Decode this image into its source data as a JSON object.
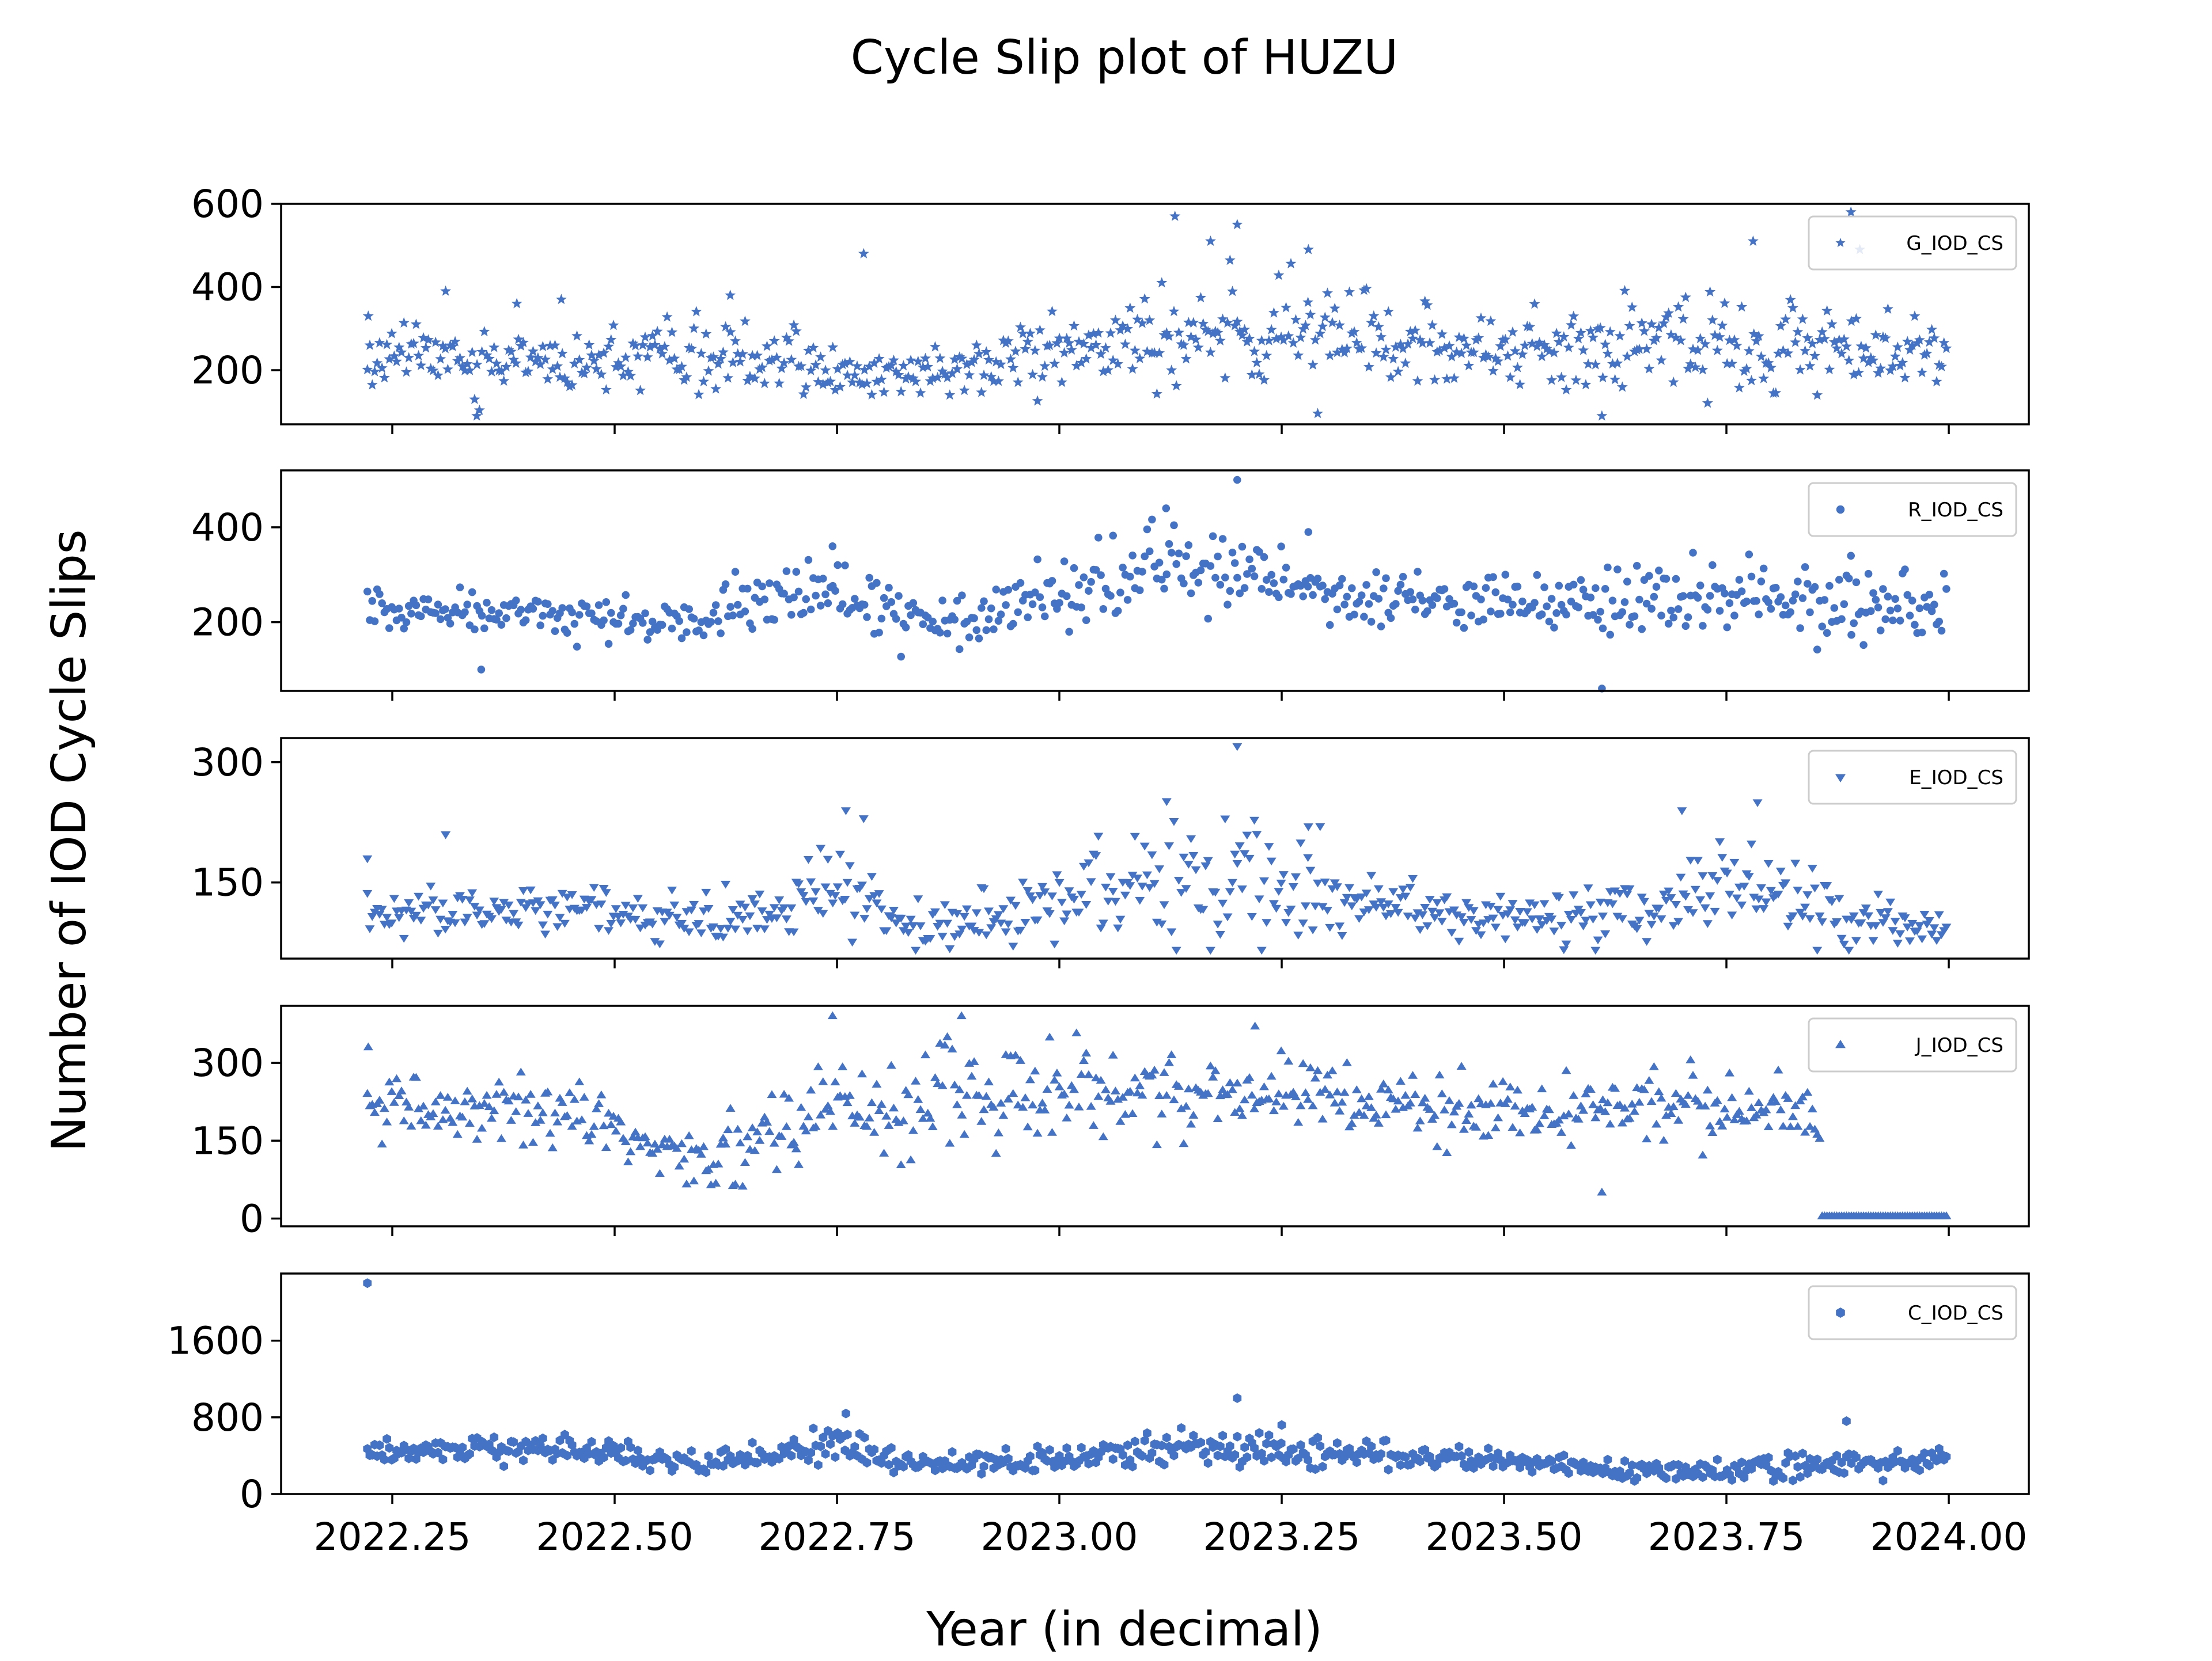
{
  "figure": {
    "title": "Cycle Slip plot of HUZU",
    "xlabel": "Year (in decimal)",
    "ylabel": "Number of IOD Cycle Slips",
    "marker_color": "#4472c4"
  },
  "chart_data": [
    {
      "type": "scatter",
      "marker": "star",
      "series": [
        {
          "name": "G_IOD_CS",
          "seed": 11,
          "segments": [
            [
              2022.22,
              240,
              45
            ],
            [
              2022.45,
              210,
              40
            ],
            [
              2022.62,
              230,
              60
            ],
            [
              2022.8,
              180,
              30
            ],
            [
              2022.95,
              220,
              45
            ],
            [
              2023.08,
              260,
              80
            ],
            [
              2023.3,
              280,
              70
            ],
            [
              2023.45,
              240,
              45
            ],
            [
              2023.7,
              260,
              70
            ],
            [
              2023.85,
              250,
              70
            ],
            [
              2024.0,
              230,
              40
            ]
          ],
          "outliers": [
            [
              2022.223,
              330
            ],
            [
              2022.31,
              390
            ],
            [
              2022.345,
              90
            ],
            [
              2022.39,
              360
            ],
            [
              2022.44,
              370
            ],
            [
              2022.63,
              380
            ],
            [
              2022.78,
              480
            ],
            [
              2023.13,
              570
            ],
            [
              2023.2,
              550
            ],
            [
              2023.17,
              510
            ],
            [
              2023.28,
              490
            ],
            [
              2023.61,
              90
            ],
            [
              2023.78,
              510
            ],
            [
              2023.89,
              580
            ],
            [
              2023.9,
              490
            ]
          ]
        }
      ],
      "xlim": [
        2022.125,
        2024.09
      ],
      "ylim": [
        70,
        600
      ],
      "yticks": [
        200,
        400,
        600
      ],
      "ytick_labels": [
        "200",
        "400",
        "600"
      ],
      "xticks": [
        2022.25,
        2022.5,
        2022.75,
        2023.0,
        2023.25,
        2023.5,
        2023.75,
        2024.0
      ],
      "xtick_labels": [],
      "legend": "top-right"
    },
    {
      "type": "scatter",
      "marker": "circle",
      "series": [
        {
          "name": "R_IOD_CS",
          "seed": 23,
          "segments": [
            [
              2022.22,
              220,
              30
            ],
            [
              2022.45,
              210,
              30
            ],
            [
              2022.6,
              200,
              35
            ],
            [
              2022.75,
              260,
              45
            ],
            [
              2022.85,
              190,
              40
            ],
            [
              2023.0,
              260,
              45
            ],
            [
              2023.12,
              320,
              50
            ],
            [
              2023.3,
              260,
              40
            ],
            [
              2023.45,
              230,
              30
            ],
            [
              2023.6,
              230,
              40
            ],
            [
              2023.75,
              250,
              50
            ],
            [
              2023.9,
              220,
              40
            ],
            [
              2024.0,
              230,
              40
            ]
          ],
          "outliers": [
            [
              2022.35,
              100
            ],
            [
              2022.745,
              360
            ],
            [
              2023.12,
              440
            ],
            [
              2023.2,
              500
            ],
            [
              2023.28,
              390
            ],
            [
              2023.61,
              60
            ],
            [
              2023.89,
              340
            ]
          ]
        }
      ],
      "xlim": [
        2022.125,
        2024.09
      ],
      "ylim": [
        55,
        520
      ],
      "yticks": [
        200,
        400
      ],
      "ytick_labels": [
        "200",
        "400"
      ],
      "xticks": [
        2022.25,
        2022.5,
        2022.75,
        2023.0,
        2023.25,
        2023.5,
        2023.75,
        2024.0
      ],
      "xtick_labels": [],
      "legend": "top-right"
    },
    {
      "type": "scatter",
      "marker": "triangle-down",
      "series": [
        {
          "name": "E_IOD_CS",
          "seed": 37,
          "segments": [
            [
              2022.22,
              110,
              15
            ],
            [
              2022.45,
              115,
              20
            ],
            [
              2022.6,
              95,
              20
            ],
            [
              2022.75,
              140,
              30
            ],
            [
              2022.85,
              90,
              15
            ],
            [
              2023.0,
              120,
              25
            ],
            [
              2023.12,
              160,
              50
            ],
            [
              2023.3,
              140,
              40
            ],
            [
              2023.45,
              110,
              15
            ],
            [
              2023.6,
              105,
              25
            ],
            [
              2023.75,
              140,
              40
            ],
            [
              2023.9,
              95,
              20
            ],
            [
              2024.0,
              95,
              15
            ]
          ],
          "outliers": [
            [
              2022.222,
              180
            ],
            [
              2022.31,
              210
            ],
            [
              2022.76,
              240
            ],
            [
              2022.78,
              230
            ],
            [
              2023.2,
              320
            ],
            [
              2023.28,
              220
            ],
            [
              2023.7,
              240
            ],
            [
              2023.785,
              250
            ]
          ]
        }
      ],
      "xlim": [
        2022.125,
        2024.09
      ],
      "ylim": [
        55,
        330
      ],
      "yticks": [
        150,
        300
      ],
      "ytick_labels": [
        "150",
        "300"
      ],
      "xticks": [
        2022.25,
        2022.5,
        2022.75,
        2023.0,
        2023.25,
        2023.5,
        2023.75,
        2024.0
      ],
      "xtick_labels": [],
      "legend": "top-right"
    },
    {
      "type": "scatter",
      "marker": "triangle-up",
      "series": [
        {
          "name": "J_IOD_CS",
          "seed": 53,
          "segments": [
            [
              2022.22,
              210,
              40
            ],
            [
              2022.45,
              190,
              45
            ],
            [
              2022.6,
              110,
              35
            ],
            [
              2022.75,
              200,
              60
            ],
            [
              2022.88,
              230,
              70
            ],
            [
              2023.0,
              230,
              60
            ],
            [
              2023.25,
              230,
              50
            ],
            [
              2023.5,
              190,
              40
            ],
            [
              2023.7,
              230,
              40
            ],
            [
              2023.85,
              190,
              40
            ]
          ],
          "outliers": [
            [
              2022.223,
              330
            ],
            [
              2022.745,
              390
            ],
            [
              2022.89,
              390
            ],
            [
              2023.22,
              370
            ],
            [
              2023.61,
              50
            ]
          ],
          "zeros_from": 2023.855,
          "zeros_to": 2024.0
        }
      ],
      "xlim": [
        2022.125,
        2024.09
      ],
      "ylim": [
        -15,
        410
      ],
      "yticks": [
        0,
        150,
        300
      ],
      "ytick_labels": [
        "0",
        "150",
        "300"
      ],
      "xticks": [
        2022.25,
        2022.5,
        2022.75,
        2023.0,
        2023.25,
        2023.5,
        2023.75,
        2024.0
      ],
      "xtick_labels": [],
      "legend": "top-right"
    },
    {
      "type": "scatter",
      "marker": "hexagon",
      "series": [
        {
          "name": "C_IOD_CS",
          "seed": 71,
          "segments": [
            [
              2022.22,
              450,
              70
            ],
            [
              2022.45,
              470,
              80
            ],
            [
              2022.6,
              280,
              90
            ],
            [
              2022.75,
              500,
              120
            ],
            [
              2022.85,
              300,
              60
            ],
            [
              2023.0,
              350,
              80
            ],
            [
              2023.15,
              480,
              130
            ],
            [
              2023.3,
              420,
              80
            ],
            [
              2023.5,
              340,
              60
            ],
            [
              2023.7,
              220,
              80
            ],
            [
              2023.8,
              300,
              120
            ],
            [
              2024.0,
              350,
              60
            ]
          ],
          "outliers": [
            [
              2022.222,
              2200
            ],
            [
              2022.76,
              840
            ],
            [
              2023.2,
              1000
            ],
            [
              2023.25,
              720
            ],
            [
              2023.885,
              760
            ]
          ]
        }
      ],
      "xlim": [
        2022.125,
        2024.09
      ],
      "ylim": [
        0,
        2300
      ],
      "yticks": [
        0,
        800,
        1600
      ],
      "ytick_labels": [
        "0",
        "800",
        "1600"
      ],
      "xticks": [
        2022.25,
        2022.5,
        2022.75,
        2023.0,
        2023.25,
        2023.5,
        2023.75,
        2024.0
      ],
      "xtick_labels": [
        "2022.25",
        "2022.50",
        "2022.75",
        "2023.00",
        "2023.25",
        "2023.50",
        "2023.75",
        "2024.00"
      ],
      "legend": "top-right"
    }
  ]
}
